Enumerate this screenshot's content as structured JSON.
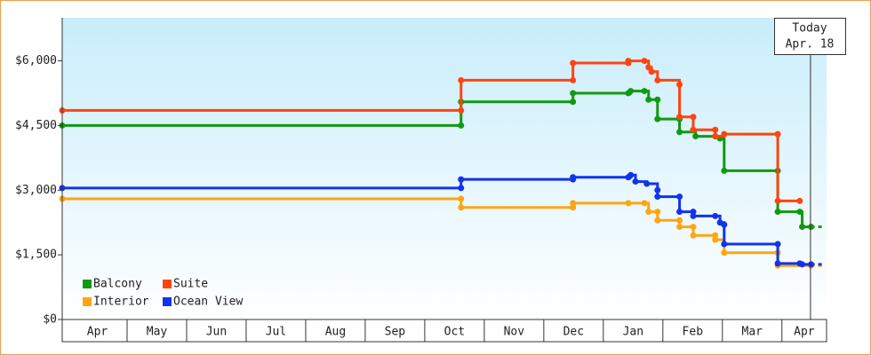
{
  "chart_data": {
    "type": "step",
    "categories": [
      "Apr",
      "May",
      "Jun",
      "Jul",
      "Aug",
      "Sep",
      "Oct",
      "Nov",
      "Dec",
      "Jan",
      "Feb",
      "Mar",
      "Apr"
    ],
    "xlim": [
      -0.09,
      12.75
    ],
    "ylim": [
      0,
      7000
    ],
    "yticks": [
      {
        "value": 0,
        "label": "$0"
      },
      {
        "value": 1500,
        "label": "$1,500"
      },
      {
        "value": 3000,
        "label": "$3,000"
      },
      {
        "value": 4500,
        "label": "$4,500"
      },
      {
        "value": 6000,
        "label": "$6,000"
      }
    ],
    "today": {
      "label": [
        "Today",
        "Apr. 18"
      ],
      "x": 12.48
    },
    "series": [
      {
        "name": "Balcony",
        "color": "#119911",
        "x": [
          -0.09,
          6.61,
          6.61,
          8.49,
          8.49,
          9.42,
          9.46,
          9.69,
          9.76,
          9.91,
          9.91,
          10.28,
          10.28,
          10.55,
          10.88,
          10.96,
          11.03,
          11.93,
          11.93,
          12.3,
          12.34,
          12.49
        ],
        "values": [
          4500,
          4500,
          5050,
          5050,
          5250,
          5250,
          5300,
          5300,
          5100,
          5100,
          4650,
          4650,
          4350,
          4250,
          4250,
          4200,
          3450,
          3450,
          2500,
          2500,
          2150,
          2150
        ]
      },
      {
        "name": "Suite",
        "color": "#ff4411",
        "x": [
          -0.09,
          6.61,
          6.61,
          8.49,
          8.49,
          9.42,
          9.42,
          9.69,
          9.76,
          9.81,
          9.91,
          10.28,
          10.28,
          10.51,
          10.51,
          10.88,
          10.88,
          11.03,
          11.93,
          11.93,
          12.3
        ],
        "values": [
          4850,
          4850,
          5550,
          5550,
          5950,
          5950,
          6000,
          6000,
          5850,
          5750,
          5550,
          5450,
          4700,
          4700,
          4400,
          4400,
          4250,
          4300,
          4300,
          2750,
          2750
        ]
      },
      {
        "name": "Interior",
        "color": "#ffa511",
        "x": [
          -0.09,
          6.61,
          6.61,
          8.49,
          8.49,
          9.42,
          9.69,
          9.76,
          9.91,
          9.91,
          10.28,
          10.28,
          10.51,
          10.51,
          10.88,
          10.88,
          11.03,
          11.93,
          11.93,
          12.49
        ],
        "values": [
          2800,
          2800,
          2600,
          2600,
          2700,
          2700,
          2700,
          2500,
          2500,
          2300,
          2300,
          2150,
          2150,
          1950,
          1950,
          1850,
          1550,
          1550,
          1250,
          1250
        ]
      },
      {
        "name": "Ocean View",
        "color": "#1133ee",
        "x": [
          -0.09,
          6.61,
          6.61,
          8.49,
          8.49,
          9.42,
          9.46,
          9.54,
          9.73,
          9.91,
          9.91,
          10.28,
          10.28,
          10.51,
          10.51,
          10.88,
          10.96,
          11.03,
          11.03,
          11.93,
          11.93,
          12.3,
          12.34,
          12.49
        ],
        "values": [
          3050,
          3050,
          3250,
          3250,
          3300,
          3300,
          3350,
          3200,
          3150,
          3000,
          2850,
          2850,
          2500,
          2500,
          2400,
          2400,
          2250,
          2200,
          1750,
          1750,
          1300,
          1300,
          1280,
          1280
        ]
      }
    ]
  }
}
